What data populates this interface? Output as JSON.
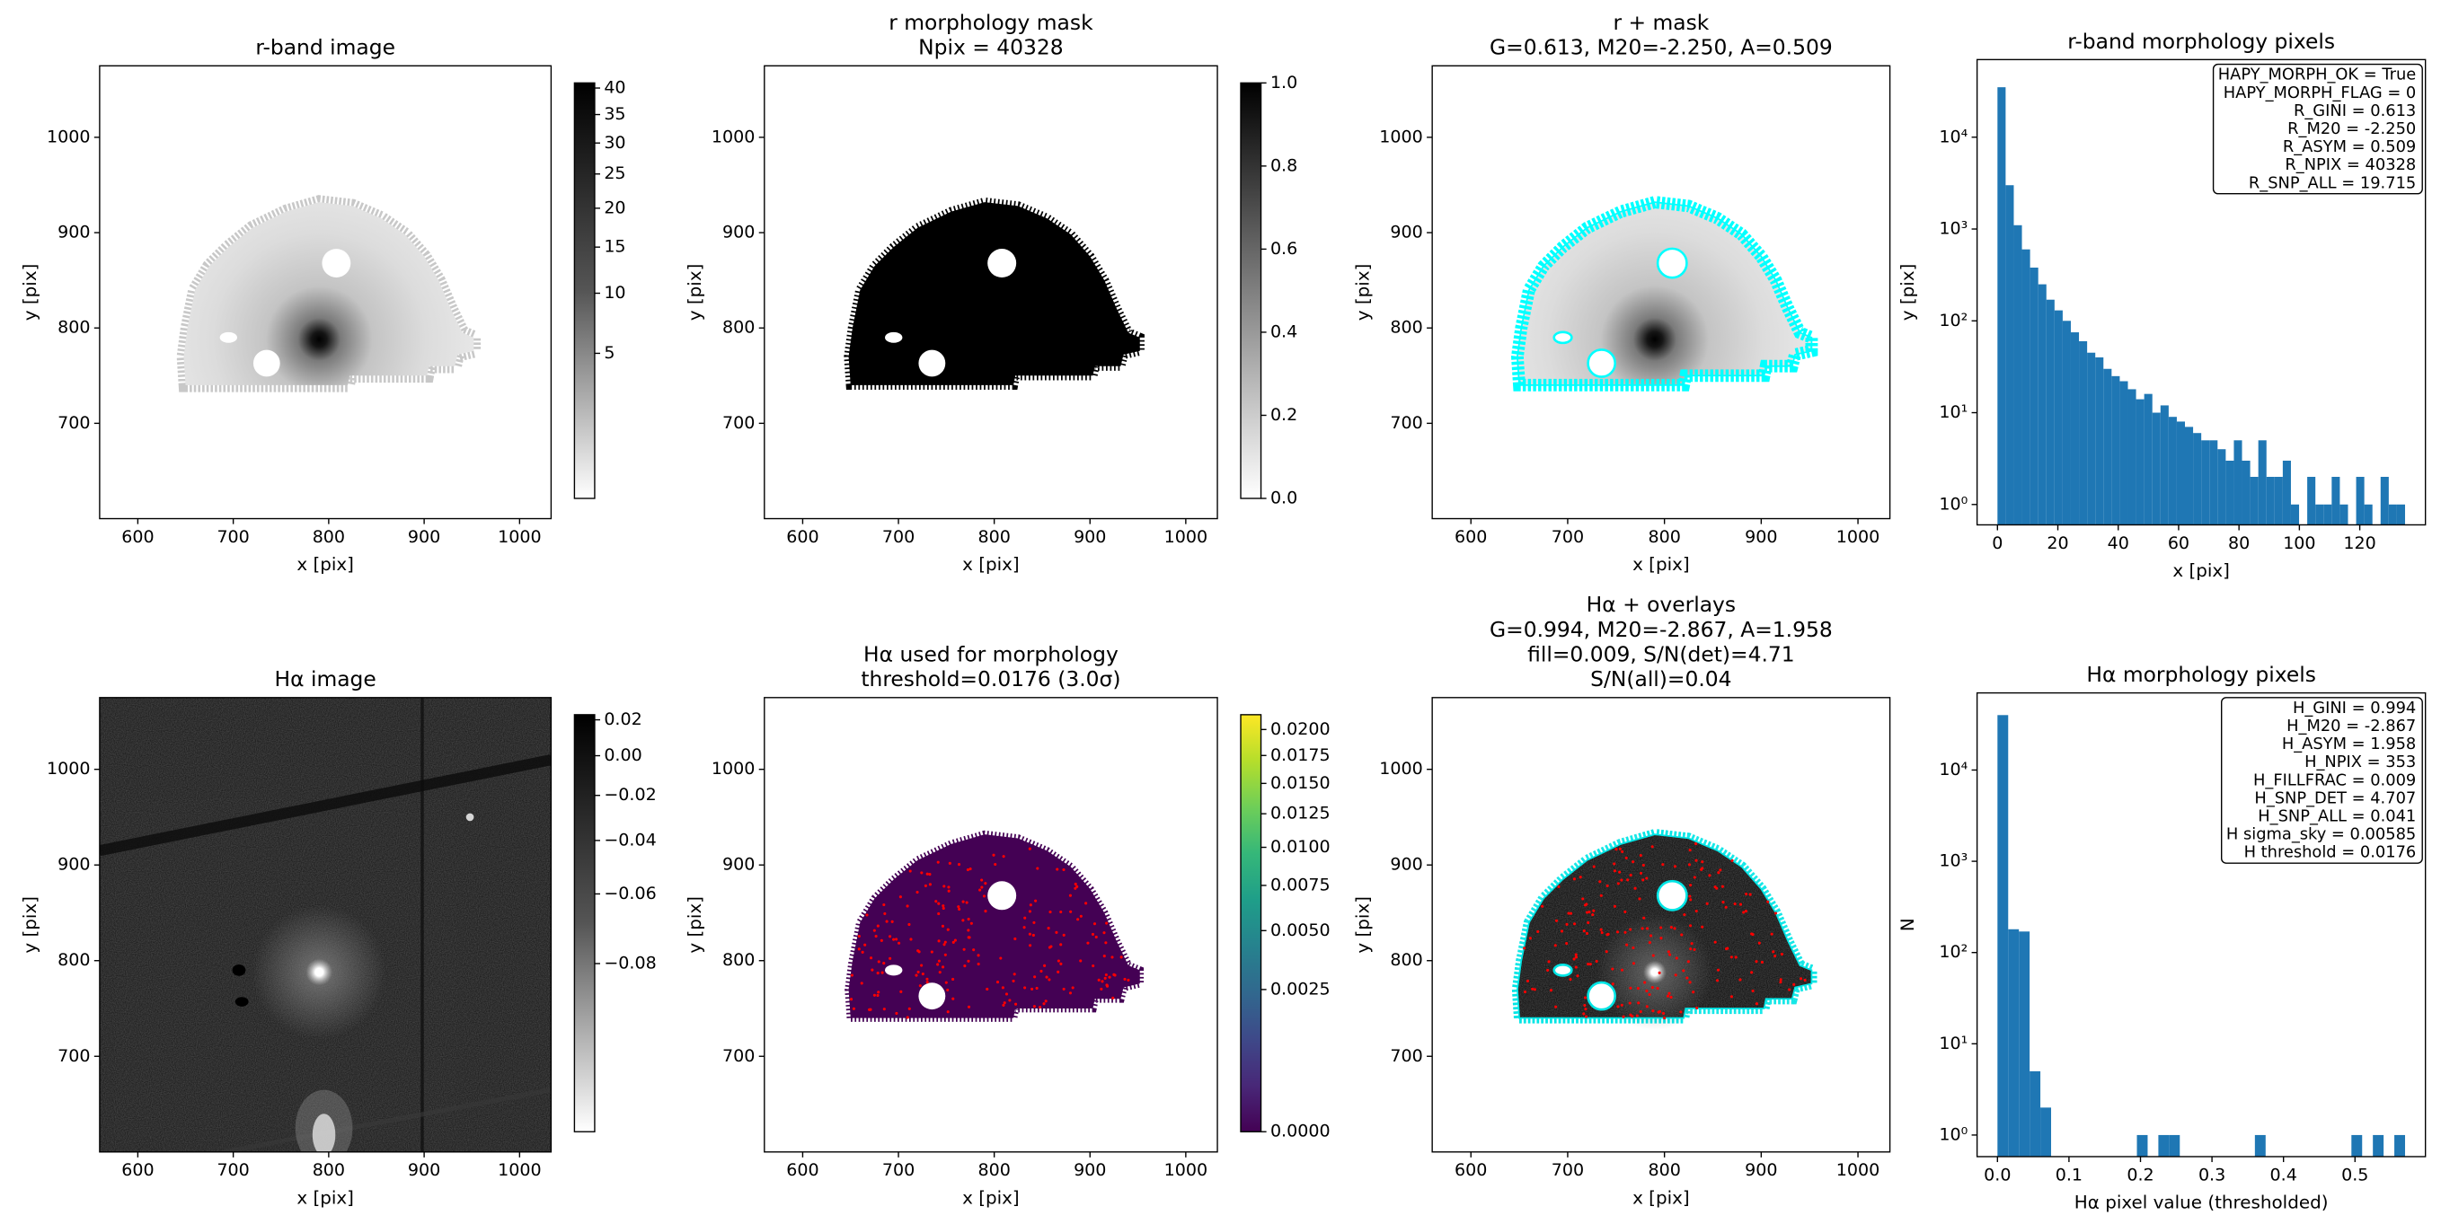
{
  "chart_data": [
    {
      "type": "image",
      "render": "r-image",
      "title": [
        "r-band image"
      ],
      "xlabel": "x [pix]",
      "ylabel": "y [pix]",
      "xlim": [
        560,
        1033
      ],
      "ylim": [
        600,
        1075
      ],
      "xticks": [
        600,
        700,
        800,
        900,
        1000
      ],
      "yticks": [
        700,
        800,
        900,
        1000
      ],
      "colorbar": {
        "cmap": "gray_r",
        "stretch": "sqrt",
        "lim": [
          0,
          41
        ],
        "ticks": [
          5,
          10,
          15,
          20,
          25,
          30,
          35,
          40
        ]
      }
    },
    {
      "type": "image",
      "render": "mask",
      "title": [
        "r morphology mask",
        "Npix = 40328"
      ],
      "xlabel": "x [pix]",
      "ylabel": "y [pix]",
      "xlim": [
        560,
        1033
      ],
      "ylim": [
        600,
        1075
      ],
      "xticks": [
        600,
        700,
        800,
        900,
        1000
      ],
      "yticks": [
        700,
        800,
        900,
        1000
      ],
      "colorbar": {
        "cmap": "gray_r",
        "stretch": "linear",
        "lim": [
          0,
          1
        ],
        "ticks": [
          {
            "value": 0,
            "label": "0.0"
          },
          0.2,
          0.4,
          0.6,
          0.8,
          {
            "value": 1,
            "label": "1.0"
          }
        ]
      }
    },
    {
      "type": "image",
      "render": "r-overlay",
      "overlay_color": "#00ffff",
      "title": [
        "r + mask",
        "G=0.613, M20=-2.250, A=0.509"
      ],
      "xlabel": "x [pix]",
      "ylabel": "y [pix]",
      "xlim": [
        560,
        1033
      ],
      "ylim": [
        600,
        1075
      ],
      "xticks": [
        600,
        700,
        800,
        900,
        1000
      ],
      "yticks": [
        700,
        800,
        900,
        1000
      ]
    },
    {
      "type": "histogram",
      "title": [
        "r-band morphology pixels"
      ],
      "xlabel": "x [pix]",
      "ylabel": "y [pix]",
      "color": "#1f77b4",
      "log_y": true,
      "bins": [
        0,
        2.7,
        5.4,
        8.1,
        10.8,
        13.5,
        16.2,
        18.9,
        21.6,
        24.3,
        27,
        29.7,
        32.4,
        35.1,
        37.8,
        40.5,
        43.2,
        45.9,
        48.6,
        51.3,
        54,
        56.7,
        59.4,
        62.1,
        64.8,
        67.5,
        70.2,
        72.9,
        75.6,
        78.3,
        81,
        83.7,
        86.4,
        89.1,
        91.8,
        94.5,
        97.2,
        99.9,
        102.6,
        105.3,
        108,
        110.7,
        113.4,
        116.1,
        118.8,
        121.5,
        124.2,
        126.9,
        129.6,
        132.3,
        135
      ],
      "counts": [
        35000,
        3000,
        1100,
        600,
        380,
        250,
        170,
        130,
        100,
        75,
        60,
        45,
        40,
        30,
        25,
        22,
        18,
        14,
        16,
        10,
        12,
        9,
        8,
        7,
        6,
        5,
        5,
        4,
        3,
        5,
        3,
        2,
        5,
        2,
        2,
        3,
        1,
        0,
        2,
        1,
        1,
        2,
        1,
        0,
        2,
        1,
        0,
        2,
        1,
        1
      ],
      "xlim": [
        -6.75,
        141.75
      ],
      "xticks": [
        0,
        20,
        40,
        60,
        80,
        100,
        120
      ],
      "ylim": [
        0.6,
        70000
      ],
      "yticks": [
        {
          "value": 1,
          "label": "10⁰"
        },
        {
          "value": 10,
          "label": "10¹"
        },
        {
          "value": 100,
          "label": "10²"
        },
        {
          "value": 1000,
          "label": "10³"
        },
        {
          "value": 10000,
          "label": "10⁴"
        }
      ],
      "annotation": [
        "HAPY_MORPH_OK = True",
        "HAPY_MORPH_FLAG = 0",
        "R_GINI = 0.613",
        "R_M20 = -2.250",
        "R_ASYM = 0.509",
        "R_NPIX = 40328",
        "R_SNP_ALL = 19.715"
      ]
    },
    {
      "type": "image",
      "render": "ha-image",
      "title": [
        "Hα image"
      ],
      "xlabel": "x [pix]",
      "ylabel": "y [pix]",
      "xlim": [
        560,
        1033
      ],
      "ylim": [
        600,
        1075
      ],
      "xticks": [
        600,
        700,
        800,
        900,
        1000
      ],
      "yticks": [
        700,
        800,
        900,
        1000
      ],
      "colorbar": {
        "cmap": "gray_r",
        "stretch": "sqrt",
        "lim": [
          -0.1,
          0.023
        ],
        "ticks": [
          0.02,
          {
            "value": 0,
            "label": "0.00"
          },
          {
            "value": -0.02,
            "label": "−0.02"
          },
          {
            "value": -0.04,
            "label": "−0.04"
          },
          {
            "value": -0.06,
            "label": "−0.06"
          },
          {
            "value": -0.08,
            "label": "−0.08"
          }
        ]
      }
    },
    {
      "type": "image",
      "render": "ha-used",
      "dot_color": "#ff0000",
      "title": [
        "Hα used for morphology",
        "threshold=0.0176 (3.0σ)"
      ],
      "xlabel": "x [pix]",
      "ylabel": "y [pix]",
      "xlim": [
        560,
        1033
      ],
      "ylim": [
        600,
        1075
      ],
      "xticks": [
        600,
        700,
        800,
        900,
        1000
      ],
      "yticks": [
        700,
        800,
        900,
        1000
      ],
      "colorbar": {
        "cmap": "viridis",
        "stretch": "sqrt",
        "lim": [
          0,
          0.0215
        ],
        "ticks": [
          {
            "value": 0,
            "label": "0.0000"
          },
          0.0025,
          {
            "value": 0.005,
            "label": "0.0050"
          },
          0.0075,
          {
            "value": 0.01,
            "label": "0.0100"
          },
          0.0125,
          {
            "value": 0.015,
            "label": "0.0150"
          },
          0.0175,
          {
            "value": 0.02,
            "label": "0.0200"
          }
        ]
      }
    },
    {
      "type": "image",
      "render": "ha-overlay",
      "overlay_color": "#00e5e5",
      "dot_color": "#ff0000",
      "title": [
        "Hα + overlays",
        "G=0.994, M20=-2.867, A=1.958",
        "fill=0.009, S/N(det)=4.71",
        "S/N(all)=0.04"
      ],
      "xlabel": "x [pix]",
      "ylabel": "y [pix]",
      "xlim": [
        560,
        1033
      ],
      "ylim": [
        600,
        1075
      ],
      "xticks": [
        600,
        700,
        800,
        900,
        1000
      ],
      "yticks": [
        700,
        800,
        900,
        1000
      ]
    },
    {
      "type": "histogram",
      "title": [
        "Hα morphology pixels"
      ],
      "xlabel": "Hα pixel value (thresholded)",
      "ylabel": "N",
      "color": "#1f77b4",
      "log_y": true,
      "bins": [
        0,
        0.015,
        0.03,
        0.045,
        0.06,
        0.075,
        0.09,
        0.105,
        0.12,
        0.135,
        0.15,
        0.165,
        0.18,
        0.195,
        0.21,
        0.225,
        0.24,
        0.255,
        0.27,
        0.285,
        0.3,
        0.315,
        0.33,
        0.345,
        0.36,
        0.375,
        0.39,
        0.405,
        0.42,
        0.435,
        0.45,
        0.465,
        0.48,
        0.495,
        0.51,
        0.525,
        0.54,
        0.555,
        0.57
      ],
      "counts": [
        40000,
        180,
        170,
        5,
        2,
        0,
        0,
        0,
        0,
        0,
        0,
        0,
        0,
        1,
        0,
        1,
        1,
        0,
        0,
        0,
        0,
        0,
        0,
        0,
        1,
        0,
        0,
        0,
        0,
        0,
        0,
        0,
        0,
        1,
        0,
        1,
        0,
        1
      ],
      "xlim": [
        -0.0285,
        0.5985
      ],
      "xticks": [
        {
          "value": 0,
          "label": "0.0"
        },
        0.1,
        0.2,
        0.3,
        0.4,
        0.5
      ],
      "ylim": [
        0.58,
        70000
      ],
      "yticks": [
        {
          "value": 1,
          "label": "10⁰"
        },
        {
          "value": 10,
          "label": "10¹"
        },
        {
          "value": 100,
          "label": "10²"
        },
        {
          "value": 1000,
          "label": "10³"
        },
        {
          "value": 10000,
          "label": "10⁴"
        }
      ],
      "annotation": [
        "H_GINI = 0.994",
        "H_M20 = -2.867",
        "H_ASYM = 1.958",
        "H_NPIX = 353",
        "H_FILLFRAC = 0.009",
        "H_SNP_DET = 4.707",
        "H_SNP_ALL = 0.041",
        "H sigma_sky = 0.00585",
        "H threshold = 0.0176"
      ]
    }
  ]
}
